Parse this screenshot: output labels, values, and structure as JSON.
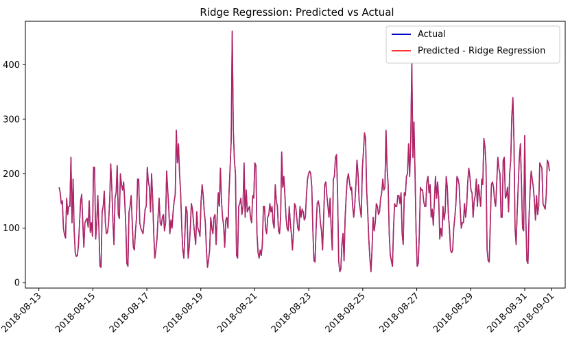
{
  "chart_data": {
    "type": "line",
    "title": "Ridge Regression: Predicted vs Actual",
    "xlabel": "",
    "ylabel": "",
    "x_tick_labels": [
      "2018-08-13",
      "2018-08-15",
      "2018-08-17",
      "2018-08-19",
      "2018-08-21",
      "2018-08-23",
      "2018-08-25",
      "2018-08-27",
      "2018-08-29",
      "2018-08-31",
      "2018-09-01"
    ],
    "y_tick_labels": [
      "0",
      "100",
      "200",
      "300",
      "400"
    ],
    "x_range": [
      "2018-08-12T12:00",
      "2018-09-01T12:00"
    ],
    "ylim": [
      -10,
      480
    ],
    "grid": false,
    "legend_position": "top-right",
    "series": [
      {
        "name": "Actual",
        "color": "#0000cc"
      },
      {
        "name": "Predicted - Ridge Regression",
        "color": "#ff3333"
      }
    ],
    "x_start": "2018-08-13T18:00",
    "x_end": "2018-08-31T22:00",
    "values": [
      175,
      165,
      145,
      150,
      100,
      88,
      82,
      155,
      125,
      140,
      140,
      230,
      110,
      190,
      95,
      55,
      48,
      50,
      70,
      110,
      150,
      162,
      110,
      65,
      110,
      115,
      118,
      102,
      150,
      92,
      110,
      85,
      212,
      212,
      80,
      110,
      160,
      100,
      30,
      28,
      130,
      140,
      168,
      110,
      90,
      92,
      110,
      150,
      218,
      175,
      115,
      70,
      155,
      165,
      215,
      125,
      118,
      200,
      180,
      170,
      185,
      150,
      105,
      35,
      30,
      130,
      140,
      160,
      110,
      65,
      60,
      95,
      120,
      190,
      190,
      110,
      100,
      95,
      90,
      110,
      135,
      140,
      212,
      185,
      175,
      130,
      200,
      155,
      90,
      45,
      60,
      80,
      120,
      155,
      110,
      105,
      120,
      125,
      95,
      110,
      205,
      170,
      135,
      90,
      115,
      100,
      130,
      150,
      162,
      280,
      220,
      255,
      200,
      165,
      105,
      60,
      45,
      90,
      140,
      130,
      45,
      65,
      100,
      145,
      135,
      110,
      90,
      70,
      130,
      100,
      95,
      85,
      150,
      180,
      160,
      130,
      110,
      60,
      28,
      42,
      60,
      120,
      100,
      90,
      120,
      125,
      70,
      120,
      165,
      140,
      210,
      150,
      120,
      105,
      65,
      115,
      120,
      100,
      165,
      210,
      260,
      462,
      280,
      225,
      200,
      50,
      45,
      140,
      145,
      155,
      125,
      140,
      220,
      120,
      170,
      130,
      135,
      140,
      120,
      110,
      160,
      155,
      220,
      215,
      90,
      55,
      45,
      60,
      50,
      70,
      140,
      140,
      100,
      90,
      120,
      125,
      145,
      130,
      140,
      110,
      100,
      180,
      150,
      140,
      95,
      90,
      120,
      240,
      175,
      195,
      160,
      120,
      100,
      95,
      140,
      110,
      90,
      60,
      95,
      145,
      140,
      120,
      100,
      95,
      140,
      120,
      135,
      130,
      115,
      120,
      160,
      190,
      200,
      205,
      200,
      175,
      95,
      40,
      38,
      100,
      145,
      150,
      140,
      110,
      95,
      60,
      120,
      180,
      185,
      160,
      140,
      120,
      155,
      100,
      60,
      190,
      195,
      230,
      235,
      160,
      40,
      20,
      25,
      70,
      90,
      40,
      120,
      160,
      190,
      200,
      185,
      170,
      175,
      140,
      120,
      145,
      180,
      225,
      200,
      150,
      135,
      120,
      210,
      240,
      275,
      265,
      170,
      130,
      80,
      45,
      20,
      60,
      120,
      95,
      110,
      145,
      140,
      125,
      130,
      155,
      165,
      190,
      170,
      175,
      280,
      210,
      180,
      90,
      50,
      40,
      30,
      100,
      145,
      140,
      140,
      160,
      160,
      145,
      165,
      90,
      70,
      165,
      160,
      195,
      200,
      255,
      195,
      260,
      405,
      230,
      295,
      200,
      90,
      30,
      35,
      90,
      175,
      170,
      170,
      150,
      140,
      140,
      185,
      195,
      165,
      180,
      120,
      135,
      105,
      150,
      195,
      155,
      185,
      155,
      80,
      100,
      85,
      140,
      115,
      130,
      195,
      175,
      125,
      100,
      60,
      55,
      60,
      100,
      120,
      145,
      195,
      190,
      180,
      135,
      100,
      110,
      110,
      145,
      120,
      140,
      185,
      210,
      195,
      170,
      165,
      120,
      150,
      160,
      190,
      140,
      180,
      160,
      140,
      190,
      180,
      265,
      250,
      215,
      60,
      40,
      38,
      110,
      180,
      185,
      175,
      150,
      140,
      185,
      230,
      210,
      200,
      120,
      120,
      225,
      230,
      155,
      160,
      175,
      130,
      200,
      225,
      305,
      340,
      260,
      100,
      70,
      130,
      180,
      230,
      255,
      180,
      100,
      95,
      270,
      120,
      40,
      35,
      120,
      170,
      205,
      190,
      175,
      150,
      115,
      160,
      125,
      140,
      220,
      215,
      210,
      145,
      140,
      135,
      160,
      225,
      220,
      205
    ]
  }
}
